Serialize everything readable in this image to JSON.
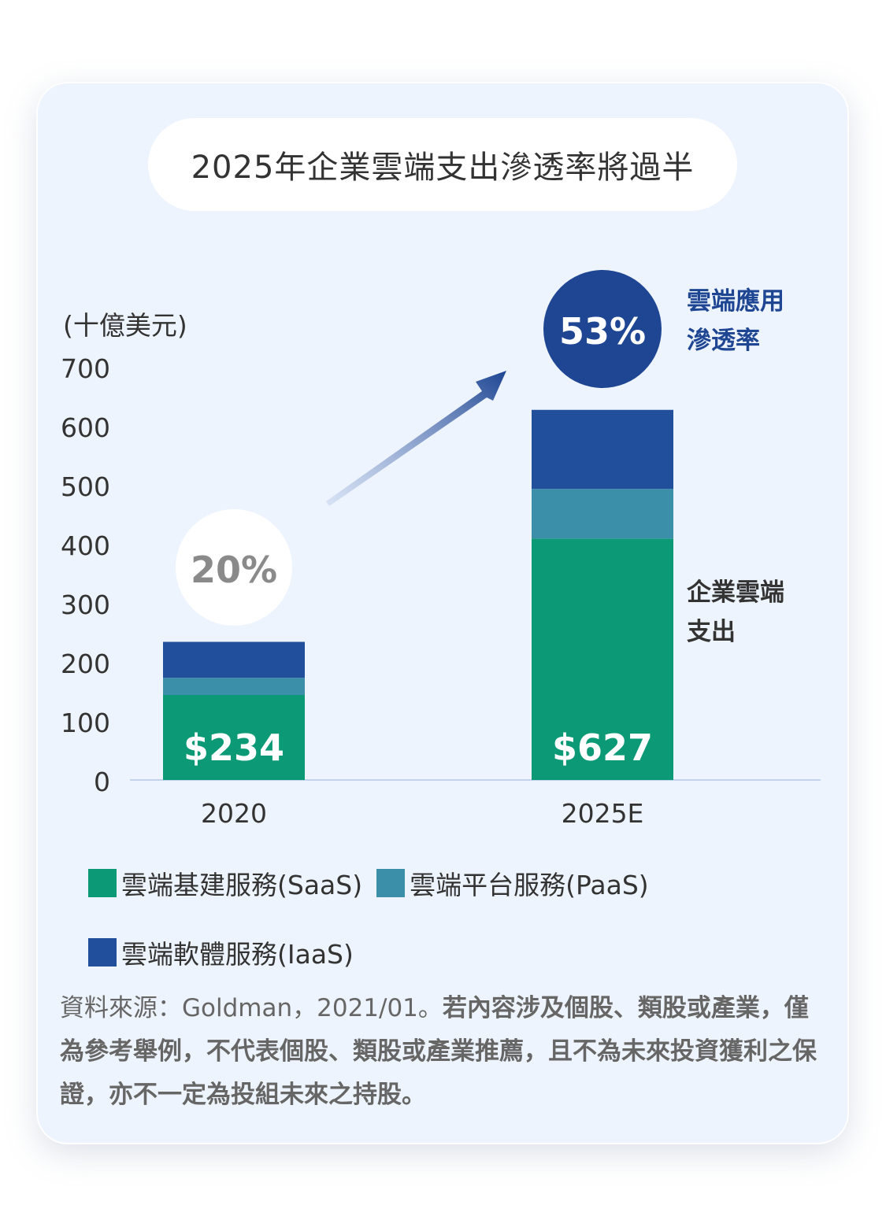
{
  "title": "2025年企業雲端支出滲透率將過半",
  "unit_label": "(十億美元)",
  "colors": {
    "saas": "#0b9a75",
    "paas": "#3b8fa8",
    "iaas": "#224f9b",
    "penetration_circle": "#1e4693",
    "side_label_blue": "#1e4693",
    "side_label_dark": "#333333"
  },
  "bubbles": {
    "left_pct": "20%",
    "right_pct": "53%"
  },
  "side_labels": {
    "penetration_line1": "雲端應用",
    "penetration_line2": "滲透率",
    "spend_line1": "企業雲端",
    "spend_line2": "支出"
  },
  "legend": [
    {
      "label": "雲端基建服務(SaaS)",
      "color_key": "saas"
    },
    {
      "label": "雲端平台服務(PaaS)",
      "color_key": "paas"
    },
    {
      "label": "雲端軟體服務(IaaS)",
      "color_key": "iaas"
    }
  ],
  "source": {
    "normal": "資料來源：Goldman，2021/01。",
    "bold": "若內容涉及個股、類股或產業，僅為參考舉例，不代表個股、類股或產業推薦，且不為未來投資獲利之保證，亦不一定為投組未來之持股。"
  },
  "chart_data": {
    "type": "bar",
    "stacked": true,
    "categories": [
      "2020",
      "2025E"
    ],
    "series": [
      {
        "name": "雲端基建服務(SaaS)",
        "values": [
          144,
          409
        ]
      },
      {
        "name": "雲端平台服務(PaaS)",
        "values": [
          29,
          84
        ]
      },
      {
        "name": "雲端軟體服務(IaaS)",
        "values": [
          61,
          134
        ]
      }
    ],
    "totals_labels": [
      "$234",
      "$627"
    ],
    "ylim": [
      0,
      700
    ],
    "yticks": [
      0,
      100,
      200,
      300,
      400,
      500,
      600,
      700
    ],
    "ylabel": "(十億美元)",
    "xlabel": "",
    "grid": false
  }
}
